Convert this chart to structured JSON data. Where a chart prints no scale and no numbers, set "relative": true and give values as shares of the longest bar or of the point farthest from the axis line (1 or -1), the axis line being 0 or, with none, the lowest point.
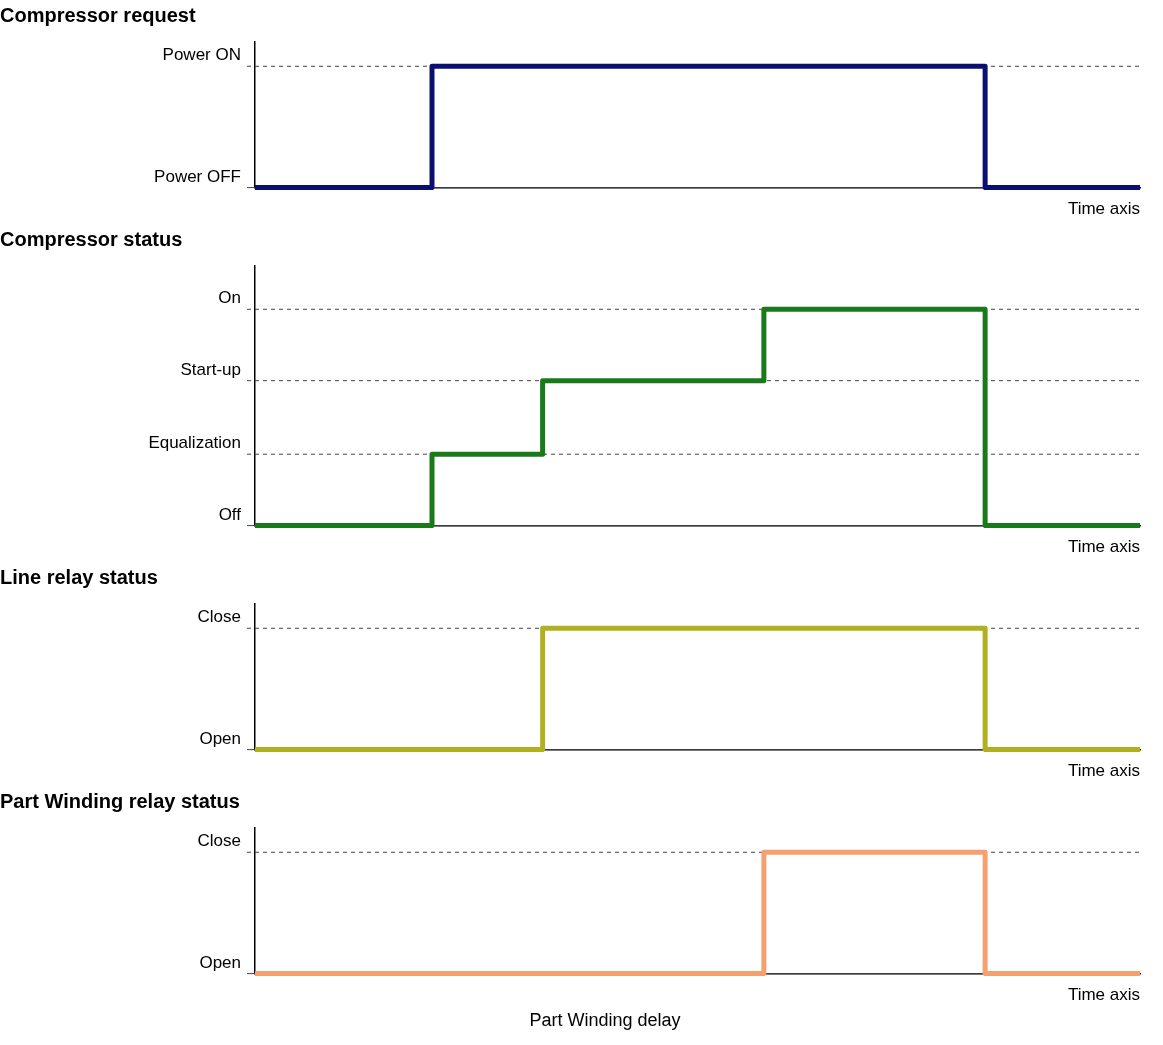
{
  "chart_data": [
    {
      "type": "step",
      "relative": true,
      "title": "Compressor request",
      "xlabel": "Time axis",
      "categories": [
        null,
        null,
        null,
        null,
        null,
        null,
        null,
        null,
        null,
        null,
        null,
        null,
        null,
        null,
        null,
        null,
        null,
        null,
        null,
        null,
        null,
        null,
        null,
        null,
        null,
        null,
        null,
        null,
        null,
        null,
        null,
        null,
        null,
        null,
        null,
        null,
        null,
        null,
        null,
        null,
        null
      ],
      "series": [
        {
          "color": "#0a1070",
          "values": [
            0,
            0,
            0,
            0,
            0,
            0,
            0,
            0,
            1,
            1,
            1,
            1,
            1,
            1,
            1,
            1,
            1,
            1,
            1,
            1,
            1,
            1,
            1,
            1,
            1,
            1,
            1,
            1,
            1,
            1,
            1,
            1,
            1,
            0,
            0,
            0,
            0,
            0,
            0,
            0,
            0
          ]
        }
      ],
      "ref_lines": [
        {
          "axis": "y",
          "value": 0,
          "label": "Power OFF"
        },
        {
          "axis": "y",
          "value": 1,
          "label": "Power ON",
          "line_style": "dashed"
        }
      ]
    },
    {
      "type": "step",
      "relative": true,
      "title": "Compressor status",
      "xlabel": "Time axis",
      "categories": [
        null,
        null,
        null,
        null,
        null,
        null,
        null,
        null,
        null,
        null,
        null,
        null,
        null,
        null,
        null,
        null,
        null,
        null,
        null,
        null,
        null,
        null,
        null,
        null,
        null,
        null,
        null,
        null,
        null,
        null,
        null,
        null,
        null,
        null,
        null,
        null,
        null,
        null,
        null,
        null,
        null
      ],
      "series": [
        {
          "color": "#1a7a1a",
          "values": [
            0,
            0,
            0,
            0,
            0,
            0,
            0,
            0,
            0.33,
            0.33,
            0.33,
            0.33,
            0.33,
            0.67,
            0.67,
            0.67,
            0.67,
            0.67,
            0.67,
            0.67,
            0.67,
            0.67,
            0.67,
            1,
            1,
            1,
            1,
            1,
            1,
            1,
            1,
            1,
            1,
            0,
            0,
            0,
            0,
            0,
            0,
            0,
            0
          ]
        }
      ],
      "ref_lines": [
        {
          "axis": "y",
          "value": 0,
          "label": "Off"
        },
        {
          "axis": "y",
          "value": 0.33,
          "label": "Equalization",
          "line_style": "dashed"
        },
        {
          "axis": "y",
          "value": 0.67,
          "label": "Start-up",
          "line_style": "dashed"
        },
        {
          "axis": "y",
          "value": 1,
          "label": "On",
          "line_style": "dashed"
        }
      ]
    },
    {
      "type": "step",
      "relative": true,
      "title": "Line relay status",
      "xlabel": "Time axis",
      "categories": [
        null,
        null,
        null,
        null,
        null,
        null,
        null,
        null,
        null,
        null,
        null,
        null,
        null,
        null,
        null,
        null,
        null,
        null,
        null,
        null,
        null,
        null,
        null,
        null,
        null,
        null,
        null,
        null,
        null,
        null,
        null,
        null,
        null,
        null,
        null,
        null,
        null,
        null,
        null,
        null,
        null
      ],
      "series": [
        {
          "color": "#b0b020",
          "values": [
            0,
            0,
            0,
            0,
            0,
            0,
            0,
            0,
            0,
            0,
            0,
            0,
            0,
            1,
            1,
            1,
            1,
            1,
            1,
            1,
            1,
            1,
            1,
            1,
            1,
            1,
            1,
            1,
            1,
            1,
            1,
            1,
            1,
            0,
            0,
            0,
            0,
            0,
            0,
            0,
            0
          ]
        }
      ],
      "ref_lines": [
        {
          "axis": "y",
          "value": 0,
          "label": "Open"
        },
        {
          "axis": "y",
          "value": 1,
          "label": "Close",
          "line_style": "dashed"
        }
      ]
    },
    {
      "type": "step",
      "relative": true,
      "title": "Part Winding relay status",
      "xlabel": "Time axis",
      "categories": [
        null,
        null,
        null,
        null,
        null,
        null,
        null,
        null,
        null,
        null,
        null,
        null,
        null,
        null,
        null,
        null,
        null,
        null,
        null,
        null,
        null,
        null,
        null,
        null,
        null,
        null,
        null,
        null,
        null,
        null,
        null,
        null,
        null,
        null,
        null,
        null,
        null,
        null,
        null,
        null,
        null
      ],
      "series": [
        {
          "color": "#f4a070",
          "values": [
            0,
            0,
            0,
            0,
            0,
            0,
            0,
            0,
            0,
            0,
            0,
            0,
            0,
            0,
            0,
            0,
            0,
            0,
            0,
            0,
            0,
            0,
            0,
            1,
            1,
            1,
            1,
            1,
            1,
            1,
            1,
            1,
            1,
            0,
            0,
            0,
            0,
            0,
            0,
            0,
            0
          ]
        }
      ],
      "ref_lines": [
        {
          "axis": "y",
          "value": 0,
          "label": "Open"
        },
        {
          "axis": "y",
          "value": 1,
          "label": "Close",
          "line_style": "dashed"
        }
      ],
      "annotations": [
        "Part Winding delay"
      ]
    }
  ]
}
